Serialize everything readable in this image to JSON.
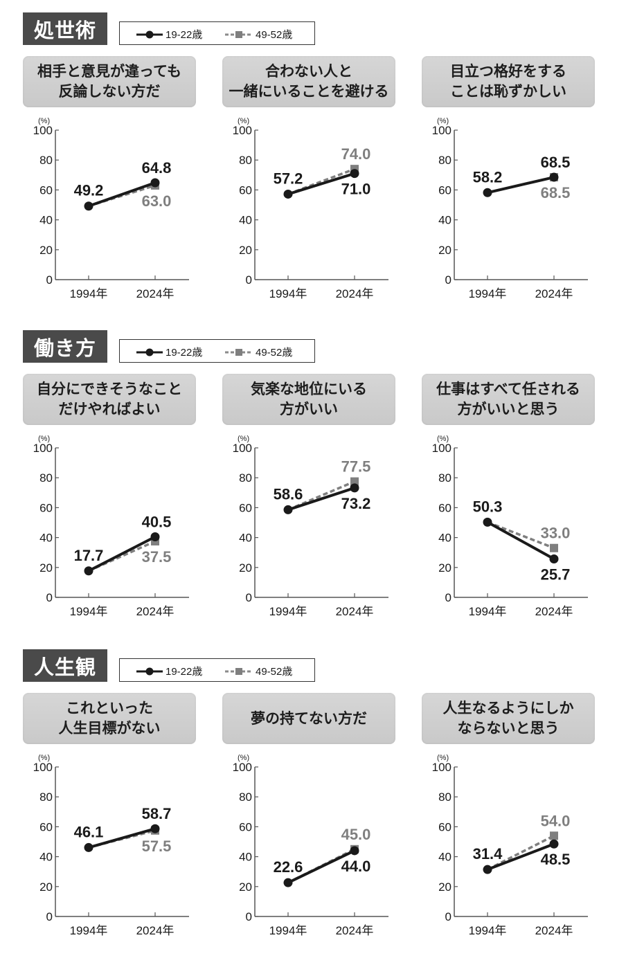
{
  "legend": {
    "series1": "19-22歳",
    "series2": "49-52歳"
  },
  "axis": {
    "unit": "(%)",
    "yticks": [
      "0",
      "20",
      "40",
      "60",
      "80",
      "100"
    ],
    "xticks": [
      "1994年",
      "2024年"
    ]
  },
  "colors": {
    "series1": "#1a1a1a",
    "series2": "#7f7f7f",
    "section_bg": "#4a4a4a",
    "card_bg": "#cfcfcf"
  },
  "sections": [
    {
      "title": "処世術",
      "charts": [
        {
          "title_lines": [
            "相手と意見が違っても",
            "反論しない方だ"
          ],
          "s1": [
            49.2,
            64.8
          ],
          "s2": [
            49.2,
            63.0
          ],
          "labels": {
            "s1_1994": "49.2",
            "s1_2024": "64.8",
            "s2_2024": "63.0"
          }
        },
        {
          "title_lines": [
            "合わない人と",
            "一緒にいることを避ける"
          ],
          "s1": [
            57.2,
            71.0
          ],
          "s2": [
            57.2,
            74.0
          ],
          "labels": {
            "s1_1994": "57.2",
            "s1_2024": "71.0",
            "s2_2024": "74.0"
          }
        },
        {
          "title_lines": [
            "目立つ格好をする",
            "ことは恥ずかしい"
          ],
          "s1": [
            58.2,
            68.5
          ],
          "s2": [
            58.2,
            68.5
          ],
          "labels": {
            "s1_1994": "58.2",
            "s1_2024": "68.5",
            "s2_2024": "68.5"
          }
        }
      ]
    },
    {
      "title": "働き方",
      "charts": [
        {
          "title_lines": [
            "自分にできそうなこと",
            "だけやればよい"
          ],
          "s1": [
            17.7,
            40.5
          ],
          "s2": [
            17.7,
            37.5
          ],
          "labels": {
            "s1_1994": "17.7",
            "s1_2024": "40.5",
            "s2_2024": "37.5"
          }
        },
        {
          "title_lines": [
            "気楽な地位にいる",
            "方がいい"
          ],
          "s1": [
            58.6,
            73.2
          ],
          "s2": [
            58.6,
            77.5
          ],
          "labels": {
            "s1_1994": "58.6",
            "s1_2024": "73.2",
            "s2_2024": "77.5"
          }
        },
        {
          "title_lines": [
            "仕事はすべて任される",
            "方がいいと思う"
          ],
          "s1": [
            50.3,
            25.7
          ],
          "s2": [
            50.3,
            33.0
          ],
          "labels": {
            "s1_1994": "50.3",
            "s1_2024": "25.7",
            "s2_2024": "33.0"
          }
        }
      ]
    },
    {
      "title": "人生観",
      "charts": [
        {
          "title_lines": [
            "これといった",
            "人生目標がない"
          ],
          "s1": [
            46.1,
            58.7
          ],
          "s2": [
            46.1,
            57.5
          ],
          "labels": {
            "s1_1994": "46.1",
            "s1_2024": "58.7",
            "s2_2024": "57.5"
          }
        },
        {
          "title_lines": [
            "夢の持てない方だ"
          ],
          "s1": [
            22.6,
            44.0
          ],
          "s2": [
            22.6,
            45.0
          ],
          "labels": {
            "s1_1994": "22.6",
            "s1_2024": "44.0",
            "s2_2024": "45.0"
          }
        },
        {
          "title_lines": [
            "人生なるようにしか",
            "ならないと思う"
          ],
          "s1": [
            31.4,
            48.5
          ],
          "s2": [
            31.4,
            54.0
          ],
          "labels": {
            "s1_1994": "31.4",
            "s1_2024": "48.5",
            "s2_2024": "54.0"
          }
        }
      ]
    }
  ],
  "chart_data": [
    {
      "type": "line",
      "group": "処世術",
      "title": "相手と意見が違っても反論しない方だ",
      "x": [
        "1994年",
        "2024年"
      ],
      "series": [
        {
          "name": "19-22歳",
          "values": [
            49.2,
            64.8
          ]
        },
        {
          "name": "49-52歳",
          "values": [
            49.2,
            63.0
          ]
        }
      ],
      "ylabel": "(%)",
      "ylim": [
        0,
        100
      ]
    },
    {
      "type": "line",
      "group": "処世術",
      "title": "合わない人と一緒にいることを避ける",
      "x": [
        "1994年",
        "2024年"
      ],
      "series": [
        {
          "name": "19-22歳",
          "values": [
            57.2,
            71.0
          ]
        },
        {
          "name": "49-52歳",
          "values": [
            57.2,
            74.0
          ]
        }
      ],
      "ylabel": "(%)",
      "ylim": [
        0,
        100
      ]
    },
    {
      "type": "line",
      "group": "処世術",
      "title": "目立つ格好をすることは恥ずかしい",
      "x": [
        "1994年",
        "2024年"
      ],
      "series": [
        {
          "name": "19-22歳",
          "values": [
            58.2,
            68.5
          ]
        },
        {
          "name": "49-52歳",
          "values": [
            58.2,
            68.5
          ]
        }
      ],
      "ylabel": "(%)",
      "ylim": [
        0,
        100
      ]
    },
    {
      "type": "line",
      "group": "働き方",
      "title": "自分にできそうなことだけやればよい",
      "x": [
        "1994年",
        "2024年"
      ],
      "series": [
        {
          "name": "19-22歳",
          "values": [
            17.7,
            40.5
          ]
        },
        {
          "name": "49-52歳",
          "values": [
            17.7,
            37.5
          ]
        }
      ],
      "ylabel": "(%)",
      "ylim": [
        0,
        100
      ]
    },
    {
      "type": "line",
      "group": "働き方",
      "title": "気楽な地位にいる方がいい",
      "x": [
        "1994年",
        "2024年"
      ],
      "series": [
        {
          "name": "19-22歳",
          "values": [
            58.6,
            73.2
          ]
        },
        {
          "name": "49-52歳",
          "values": [
            58.6,
            77.5
          ]
        }
      ],
      "ylabel": "(%)",
      "ylim": [
        0,
        100
      ]
    },
    {
      "type": "line",
      "group": "働き方",
      "title": "仕事はすべて任される方がいいと思う",
      "x": [
        "1994年",
        "2024年"
      ],
      "series": [
        {
          "name": "19-22歳",
          "values": [
            50.3,
            25.7
          ]
        },
        {
          "name": "49-52歳",
          "values": [
            50.3,
            33.0
          ]
        }
      ],
      "ylabel": "(%)",
      "ylim": [
        0,
        100
      ]
    },
    {
      "type": "line",
      "group": "人生観",
      "title": "これといった人生目標がない",
      "x": [
        "1994年",
        "2024年"
      ],
      "series": [
        {
          "name": "19-22歳",
          "values": [
            46.1,
            58.7
          ]
        },
        {
          "name": "49-52歳",
          "values": [
            46.1,
            57.5
          ]
        }
      ],
      "ylabel": "(%)",
      "ylim": [
        0,
        100
      ]
    },
    {
      "type": "line",
      "group": "人生観",
      "title": "夢の持てない方だ",
      "x": [
        "1994年",
        "2024年"
      ],
      "series": [
        {
          "name": "19-22歳",
          "values": [
            22.6,
            44.0
          ]
        },
        {
          "name": "49-52歳",
          "values": [
            22.6,
            45.0
          ]
        }
      ],
      "ylabel": "(%)",
      "ylim": [
        0,
        100
      ]
    },
    {
      "type": "line",
      "group": "人生観",
      "title": "人生なるようにしかならないと思う",
      "x": [
        "1994年",
        "2024年"
      ],
      "series": [
        {
          "name": "19-22歳",
          "values": [
            31.4,
            48.5
          ]
        },
        {
          "name": "49-52歳",
          "values": [
            31.4,
            54.0
          ]
        }
      ],
      "ylabel": "(%)",
      "ylim": [
        0,
        100
      ]
    }
  ]
}
